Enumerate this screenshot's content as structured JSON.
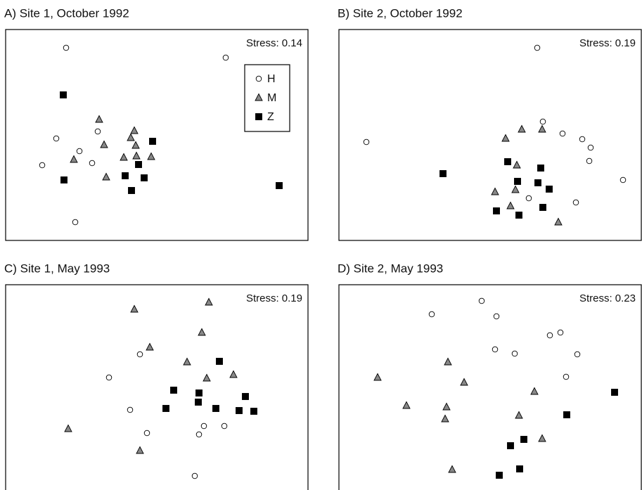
{
  "chart_data": [
    {
      "type": "scatter",
      "title": "A) Site 1, October 1992",
      "annotation": "Stress: 0.14",
      "xlim": [
        0,
        430
      ],
      "ylim": [
        0,
        300
      ],
      "legend": "top-right",
      "series": [
        {
          "name": "H",
          "marker": "circle",
          "color": "#ffffff",
          "x": [
            86,
            313,
            72,
            131,
            105,
            52,
            123,
            99
          ],
          "y": [
            274,
            260,
            145,
            155,
            127,
            107,
            110,
            26
          ]
        },
        {
          "name": "M",
          "marker": "triangle",
          "color": "#888888",
          "x": [
            133,
            183,
            140,
            178,
            185,
            97,
            168,
            186,
            207,
            143
          ],
          "y": [
            172,
            156,
            136,
            146,
            135,
            115,
            118,
            120,
            119,
            90
          ]
        },
        {
          "name": "Z",
          "marker": "square",
          "color": "#000000",
          "x": [
            82,
            209,
            189,
            170,
            197,
            83,
            179,
            389
          ],
          "y": [
            207,
            141,
            108,
            92,
            89,
            86,
            71,
            78
          ]
        }
      ]
    },
    {
      "type": "scatter",
      "title": "B) Site 2, October 1992",
      "annotation": "Stress: 0.19",
      "xlim": [
        0,
        430
      ],
      "ylim": [
        0,
        300
      ],
      "series": [
        {
          "marker": "circle",
          "color": "#ffffff",
          "x": [
            282,
            39,
            290,
            318,
            346,
            358,
            356,
            404,
            270,
            337
          ],
          "y": [
            274,
            140,
            169,
            152,
            144,
            132,
            113,
            86,
            60,
            54
          ]
        },
        {
          "marker": "triangle",
          "color": "#888888",
          "x": [
            260,
            289,
            237,
            253,
            222,
            251,
            244,
            312
          ],
          "y": [
            158,
            158,
            145,
            107,
            69,
            72,
            49,
            26
          ]
        },
        {
          "marker": "square",
          "color": "#000000",
          "x": [
            148,
            240,
            287,
            254,
            283,
            299,
            290,
            224,
            256
          ],
          "y": [
            95,
            112,
            103,
            84,
            82,
            73,
            47,
            42,
            36
          ]
        }
      ]
    },
    {
      "type": "scatter",
      "title": "C) Site 1, May 1993",
      "annotation": "Stress: 0.19",
      "xlim": [
        0,
        430
      ],
      "ylim": [
        0,
        300
      ],
      "series": [
        {
          "marker": "circle",
          "color": "#ffffff",
          "x": [
            191,
            147,
            177,
            201,
            282,
            275,
            311,
            269
          ],
          "y": [
            201,
            168,
            122,
            89,
            99,
            87,
            99,
            28
          ]
        },
        {
          "marker": "triangle",
          "color": "#888888",
          "x": [
            183,
            289,
            279,
            205,
            258,
            324,
            286,
            89,
            191
          ],
          "y": [
            265,
            275,
            232,
            211,
            190,
            172,
            167,
            95,
            64
          ]
        },
        {
          "marker": "square",
          "color": "#000000",
          "x": [
            304,
            239,
            275,
            341,
            274,
            228,
            299,
            332,
            353
          ],
          "y": [
            191,
            150,
            146,
            141,
            133,
            124,
            124,
            121,
            120
          ]
        }
      ]
    },
    {
      "type": "scatter",
      "title": "D) Site 2, May 1993",
      "annotation": "Stress: 0.23",
      "xlim": [
        0,
        430
      ],
      "ylim": [
        0,
        300
      ],
      "series": [
        {
          "marker": "circle",
          "color": "#ffffff",
          "x": [
            203,
            132,
            224,
            300,
            315,
            222,
            250,
            339,
            323
          ],
          "y": [
            277,
            258,
            255,
            228,
            232,
            208,
            202,
            201,
            169
          ]
        },
        {
          "marker": "triangle",
          "color": "#888888",
          "x": [
            55,
            155,
            178,
            278,
            96,
            153,
            151,
            256,
            289,
            161
          ],
          "y": [
            168,
            190,
            161,
            148,
            128,
            126,
            109,
            114,
            81,
            37
          ]
        },
        {
          "marker": "square",
          "color": "#000000",
          "x": [
            392,
            324,
            263,
            244,
            257,
            228
          ],
          "y": [
            147,
            115,
            80,
            71,
            38,
            29
          ]
        }
      ]
    }
  ]
}
